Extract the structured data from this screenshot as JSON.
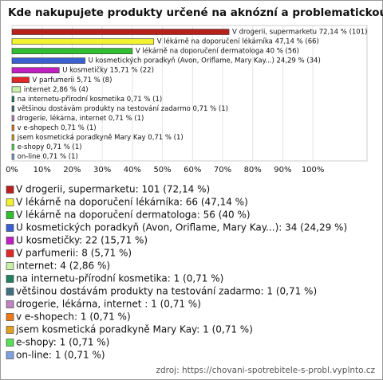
{
  "chart_data": {
    "type": "bar",
    "orientation": "horizontal",
    "title": "Kde nakupujete produkty určené na aknózní a problematickou pleť?",
    "categories": [
      "V drogerii, supermarketu",
      "V lékárně na doporučení lékárníka",
      "V lékárně na doporučení dermatologa",
      "U kosmetických poradkyň (Avon, Oriflame, Mary Kay...)",
      "U kosmetičky",
      "V parfumerii",
      "internet",
      "na internetu-přírodní kosmetika",
      "většinou dostávám produkty na testování zadarmo",
      "drogerie, lékárna, internet",
      "v e-shopech",
      "jsem kosmetická poradkyně Mary Kay",
      "e-shopy",
      "on-line"
    ],
    "values": [
      72.14,
      47.14,
      40,
      24.29,
      15.71,
      5.71,
      2.86,
      0.71,
      0.71,
      0.71,
      0.71,
      0.71,
      0.71,
      0.71
    ],
    "value_labels": [
      "V drogerii, supermarketu 72,14 % (101)",
      "V lékárně na doporučení lékárníka 47,14 % (66)",
      "V lékárně na doporučení dermatologa 40 % (56)",
      "U kosmetických poradkyň (Avon, Oriflame, Mary Kay...) 24,29 % (34)",
      "U kosmetičky 15,71 % (22)",
      "V parfumerii 5,71 % (8)",
      "internet 2,86 % (4)",
      "na internetu-přírodní kosmetika 0,71 % (1)",
      "většinou dostávám produkty na testování zadarmo 0,71 % (1)",
      "drogerie, lékárna, internet  0,71 % (1)",
      "v e-shopech 0,71 % (1)",
      "jsem kosmetická poradkyně Mary Kay 0,71 % (1)",
      "e-shopy 0,71 % (1)",
      "on-line 0,71 % (1)"
    ],
    "colors": [
      "#b8201c",
      "#f2f230",
      "#2fbf2f",
      "#3a5fd0",
      "#c020c0",
      "#e02828",
      "#c8f0a8",
      "#1f7f5f",
      "#3f6f80",
      "#c084c0",
      "#f07818",
      "#e0a020",
      "#58e058",
      "#80a0e0"
    ],
    "legend_labels": [
      "V drogerii, supermarketu: 101 (72,14 %)",
      "V lékárně na doporučení lékárníka: 66 (47,14 %)",
      "V lékárně na doporučení dermatologa: 56 (40 %)",
      "U kosmetických poradkyň (Avon, Oriflame, Mary Kay...): 34 (24,29 %)",
      "U kosmetičky: 22 (15,71 %)",
      "V parfumerii: 8 (5,71 %)",
      "internet: 4 (2,86 %)",
      "na internetu-přírodní kosmetika: 1 (0,71 %)",
      "většinou dostávám produkty na testování zadarmo: 1 (0,71 %)",
      "drogerie, lékárna, internet : 1 (0,71 %)",
      "v e-shopech: 1 (0,71 %)",
      "jsem kosmetická poradkyně Mary Kay: 1 (0,71 %)",
      "e-shopy: 1 (0,71 %)",
      "on-line: 1 (0,71 %)"
    ],
    "xlim": [
      0,
      118
    ],
    "xticks": [
      {
        "value": 0,
        "label": "0%"
      },
      {
        "value": 10,
        "label": "10%"
      },
      {
        "value": 20,
        "label": "20%"
      },
      {
        "value": 30,
        "label": "30%"
      },
      {
        "value": 40,
        "label": "40%"
      },
      {
        "value": 50,
        "label": "50%"
      },
      {
        "value": 60,
        "label": "60%"
      },
      {
        "value": 70,
        "label": "70%"
      },
      {
        "value": 80,
        "label": "80%"
      },
      {
        "value": 90,
        "label": "90%"
      },
      {
        "value": 100,
        "label": "100%"
      }
    ],
    "grid": true,
    "source": "zdroj: https://chovani-spotrebitele-s-probl.vyplnto.cz"
  }
}
